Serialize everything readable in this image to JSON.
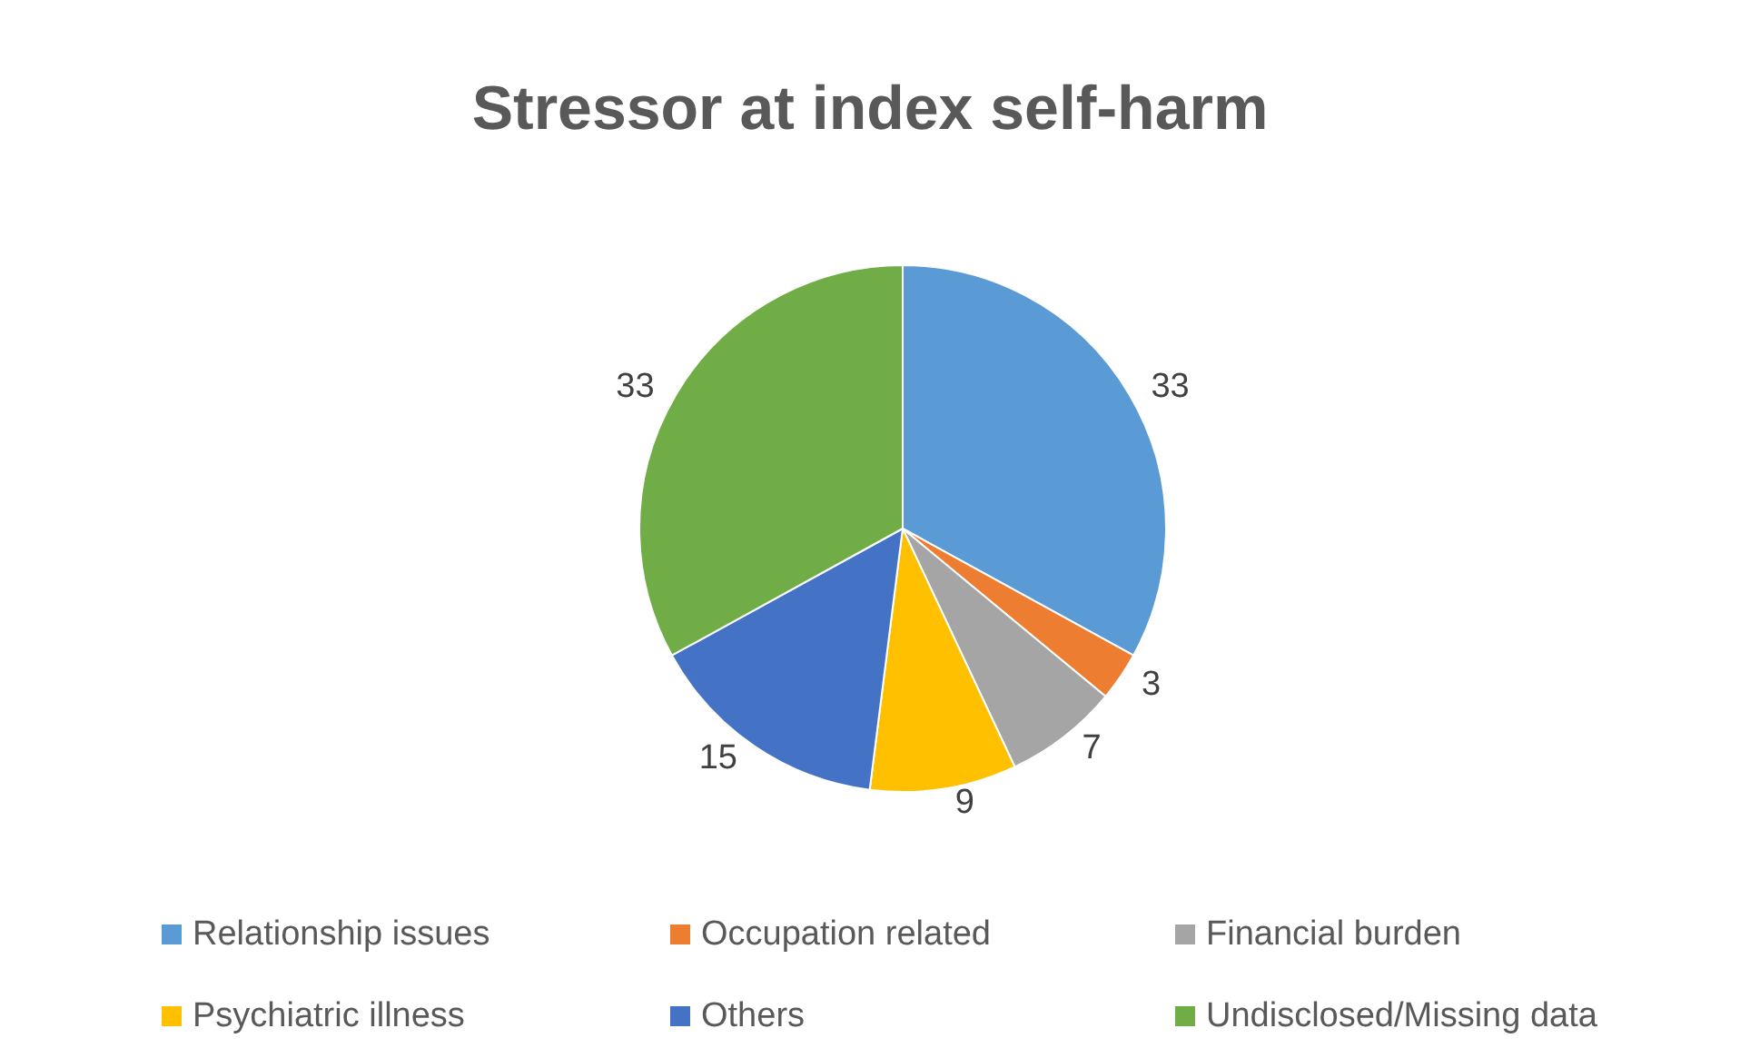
{
  "chart_data": {
    "type": "pie",
    "title": "Stressor at index self-harm",
    "categories": [
      "Relationship issues",
      "Occupation related",
      "Financial burden",
      "Psychiatric illness",
      "Others",
      "Undisclosed/Missing data"
    ],
    "values": [
      33,
      3,
      7,
      9,
      15,
      33
    ],
    "colors": [
      "#5b9bd5",
      "#ed7d31",
      "#a5a5a5",
      "#ffc000",
      "#4472c4",
      "#70ad47"
    ],
    "data_labels": true,
    "legend": "bottom"
  }
}
